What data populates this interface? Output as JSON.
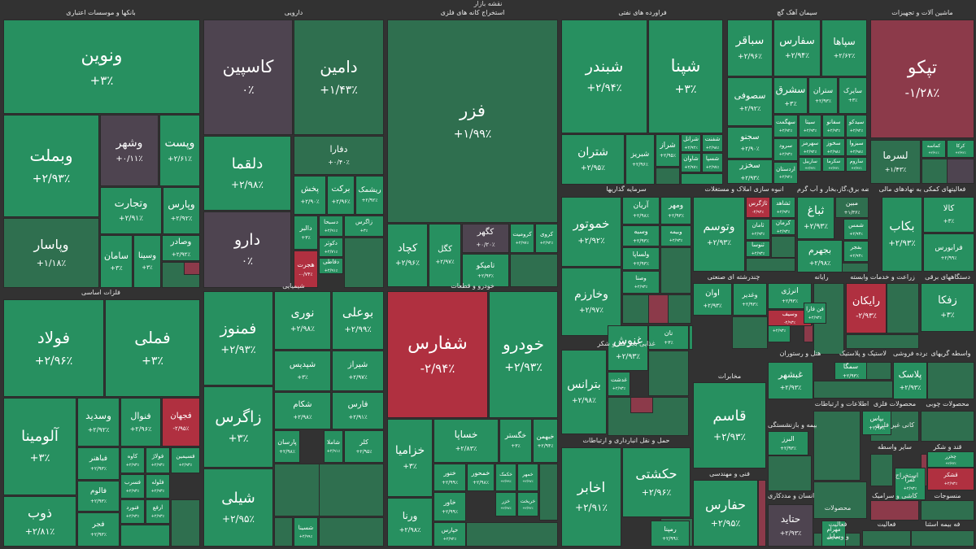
{
  "title": "نقشه بازار",
  "colors": {
    "up": "#279060",
    "upDark": "#2f6f4f",
    "neutral": "#4e4450",
    "down": "#b03040",
    "downMid": "#8c3a4a",
    "bg": "#323232"
  },
  "sectors": [
    "بانکها و موسسات اعتباری",
    "دارویی",
    "استخراج کانه های فلزی",
    "فراورده های نفتی",
    "سیمان آهک گچ",
    "ماشین آلات و تجهیزات",
    "فلزات اساسی",
    "شیمیایی",
    "خودرو و قطعات",
    "سرمایه گذاریها",
    "انبوه سازی املاک و مستغلات",
    "عرضه برق،گاز،بخار و آب گرم",
    "فعالیتهای کمکی به نهادهای مالی",
    "چندرشته ای صنعتی",
    "رایانه",
    "زراعت و خدمات وابسته",
    "دستگاههای برقی",
    "غذایی بجز قند و شکر",
    "هتل و رستوران",
    "لاستیک و پلاستیک",
    "خرده فروشی",
    "واسطه گریهای",
    "مخابرات",
    "اطلاعات و ارتباطات",
    "محصولات فلزی",
    "محصولات چوبی",
    "بیمه و بازنشستگی",
    "کانی غیر فلزی",
    "قند و شکر",
    "حمل و نقل انبارداری و ارتباطات",
    "سایر واسطه",
    "استخراج",
    "فنی و مهندسی",
    "سلامت انسان و مددکاری",
    "کاشی و سرامیک",
    "منسوجات",
    "محصولات",
    "فعالیت",
    "فعالیت",
    "فه بیمه اسثنا",
    "و وسایل"
  ],
  "tiles": [
    {
      "name": "ونوین",
      "value": "+۳٪",
      "c": "up"
    },
    {
      "name": "وبملت",
      "value": "+۲/۹۳٪",
      "c": "up"
    },
    {
      "name": "وپاسار",
      "value": "+۱/۱۸٪",
      "c": "upDark"
    },
    {
      "name": "وشهر",
      "value": "+۰/۱۱٪",
      "c": "neutral"
    },
    {
      "name": "وپست",
      "value": "+۲/۶۱٪",
      "c": "up"
    },
    {
      "name": "وتجارت",
      "value": "+۲/۹۱٪",
      "c": "up"
    },
    {
      "name": "وپارس",
      "value": "+۲/۹۲٪",
      "c": "up"
    },
    {
      "name": "سامان",
      "value": "+۳٪",
      "c": "up"
    },
    {
      "name": "وسینا",
      "value": "+۳٪",
      "c": "up"
    },
    {
      "name": "وصادر",
      "value": "+۲/۹۲٪",
      "c": "up"
    },
    {
      "name": "کاسپین",
      "value": "۰٪",
      "c": "neutral"
    },
    {
      "name": "دامین",
      "value": "+۱/۴۳٪",
      "c": "upDark"
    },
    {
      "name": "دلقما",
      "value": "+۲/۹۸٪",
      "c": "up"
    },
    {
      "name": "دفارا",
      "value": "+۰/۴۰٪",
      "c": "upDark"
    },
    {
      "name": "دارو",
      "value": "۰٪",
      "c": "neutral"
    },
    {
      "name": "پخش",
      "value": "+۲/۹۰٪",
      "c": "up"
    },
    {
      "name": "برکت",
      "value": "+۲/۹۶٪",
      "c": "up"
    },
    {
      "name": "ریشمک",
      "value": "+۲/۹۲٪",
      "c": "up"
    },
    {
      "name": "دالبر",
      "value": "+۳٪",
      "c": "up"
    },
    {
      "name": "دسبحا",
      "value": "+۲/۹۱٪",
      "c": "up"
    },
    {
      "name": "زاگرس",
      "value": "+۳٪",
      "c": "up"
    },
    {
      "name": "دکوثر",
      "value": "+۲/۷۱٪",
      "c": "up"
    },
    {
      "name": "دفاطی",
      "value": "+۲/۹۱٪",
      "c": "up"
    },
    {
      "name": "هجرت",
      "value": "-۰/۷۴٪",
      "c": "down"
    },
    {
      "name": "فزر",
      "value": "+۱/۹۹٪",
      "c": "upDark"
    },
    {
      "name": "کچاد",
      "value": "+۲/۹۶٪",
      "c": "up"
    },
    {
      "name": "کگل",
      "value": "+۲/۹۷٪",
      "c": "up"
    },
    {
      "name": "کگهر",
      "value": "+۰/۲۰٪",
      "c": "neutral"
    },
    {
      "name": "کروميت",
      "value": "+۲/۹۷٪",
      "c": "up"
    },
    {
      "name": "کروی",
      "value": "+۲/۹۲٪",
      "c": "up"
    },
    {
      "name": "کاصفا",
      "value": "+۰/۳۰٪",
      "c": "upDark"
    },
    {
      "name": "کمنا",
      "value": "+۲/۹۲٪",
      "c": "up"
    },
    {
      "name": "تامپکو",
      "value": "+۲/۹۳٪",
      "c": "up"
    },
    {
      "name": "شبندر",
      "value": "+۲/۹۴٪",
      "c": "up"
    },
    {
      "name": "شپنا",
      "value": "+۳٪",
      "c": "up"
    },
    {
      "name": "شتران",
      "value": "+۲/۹۵٪",
      "c": "up"
    },
    {
      "name": "شبریز",
      "value": "+۲/۹۶٪",
      "c": "up"
    },
    {
      "name": "شراز",
      "value": "+۲/۹۵٪",
      "c": "up"
    },
    {
      "name": "شرانل",
      "value": "+۲/۹۲٪",
      "c": "up"
    },
    {
      "name": "شفنت",
      "value": "+۲/۹۸٪",
      "c": "up"
    },
    {
      "name": "شاوان",
      "value": "+۲/۹۷٪",
      "c": "up"
    },
    {
      "name": "شسپا",
      "value": "+۲/۹۷٪",
      "c": "up"
    },
    {
      "name": "سباقر",
      "value": "+۲/۹۶٪",
      "c": "up"
    },
    {
      "name": "سفارس",
      "value": "+۲/۹۴٪",
      "c": "up"
    },
    {
      "name": "سپاها",
      "value": "+۲/۶۲٪",
      "c": "up"
    },
    {
      "name": "سصوفی",
      "value": "+۲/۹۲٪",
      "c": "up"
    },
    {
      "name": "سشرق",
      "value": "+۳٪",
      "c": "up"
    },
    {
      "name": "ستران",
      "value": "+۲/۹۳٪",
      "c": "up"
    },
    {
      "name": "سایرک",
      "value": "+۳٪",
      "c": "up"
    },
    {
      "name": "سهگمت",
      "value": "+۲/۹۲٪",
      "c": "up"
    },
    {
      "name": "سیتا",
      "value": "+۲/۹۳٪",
      "c": "up"
    },
    {
      "name": "سفانو",
      "value": "+۲/۹۳٪",
      "c": "up"
    },
    {
      "name": "سخزر",
      "value": "+۲/۹۳٪",
      "c": "up"
    },
    {
      "name": "سجنو",
      "value": "+۲/۹۰٪",
      "c": "up"
    },
    {
      "name": "سرود",
      "value": "+۲/۹۳٪",
      "c": "up"
    },
    {
      "name": "سیدکو",
      "value": "+۲/۹۲٪",
      "c": "up"
    },
    {
      "name": "سهرمز",
      "value": "+۲/۹۲٪",
      "c": "up"
    },
    {
      "name": "سخوز",
      "value": "+۲/۹۸٪",
      "c": "up"
    },
    {
      "name": "سبزوا",
      "value": "+۲/۹۸٪",
      "c": "up"
    },
    {
      "name": "ساربیل",
      "value": "+۲/۹۳٪",
      "c": "up"
    },
    {
      "name": "سکرما",
      "value": "+۲/۹۳٪",
      "c": "up"
    },
    {
      "name": "ساروم",
      "value": "+۲/۹۲٪",
      "c": "up"
    },
    {
      "name": "اردستان",
      "value": "+۲/۹۲٪",
      "c": "up"
    },
    {
      "name": "تپکو",
      "value": "-۱/۲۸٪",
      "c": "downMid"
    },
    {
      "name": "لسرما",
      "value": "+۱/۴۳٪",
      "c": "upDark"
    },
    {
      "name": "کماسه",
      "value": "+۲/۹۱٪",
      "c": "up"
    },
    {
      "name": "کرکا",
      "value": "+۲/۹۲٪",
      "c": "up"
    },
    {
      "name": "فولاد",
      "value": "+۲/۹۶٪",
      "c": "up"
    },
    {
      "name": "فملی",
      "value": "+۳٪",
      "c": "up"
    },
    {
      "name": "آلومینا",
      "value": "+۳٪",
      "c": "up"
    },
    {
      "name": "وسدید",
      "value": "+۲/۹۲٪",
      "c": "up"
    },
    {
      "name": "فنوال",
      "value": "+۲/۹۶٪",
      "c": "up"
    },
    {
      "name": "فجهان",
      "value": "-۲/۹۵٪",
      "c": "down"
    },
    {
      "name": "ذوب",
      "value": "+۲/۸۱٪",
      "c": "up"
    },
    {
      "name": "فباهنر",
      "value": "+۲/۹۳٪",
      "c": "up"
    },
    {
      "name": "کاوه",
      "value": "+۲/۹۳٪",
      "c": "up"
    },
    {
      "name": "فولاژ",
      "value": "+۲/۹۳٪",
      "c": "up"
    },
    {
      "name": "فسیمین",
      "value": "+۲/۹۳٪",
      "c": "up"
    },
    {
      "name": "فسرب",
      "value": "+۲/۹۳٪",
      "c": "up"
    },
    {
      "name": "فالوم",
      "value": "+۲/۹۳٪",
      "c": "up"
    },
    {
      "name": "فلوله",
      "value": "+۲/۹۳٪",
      "c": "up"
    },
    {
      "name": "فنورد",
      "value": "+۲/۹۳٪",
      "c": "up"
    },
    {
      "name": "ارفع",
      "value": "+۲/۹۳٪",
      "c": "up"
    },
    {
      "name": "فجر",
      "value": "+۲/۹۳٪",
      "c": "up"
    },
    {
      "name": "فمنوز",
      "value": "+۲/۹۳٪",
      "c": "up"
    },
    {
      "name": "نوری",
      "value": "+۲/۹۸٪",
      "c": "up"
    },
    {
      "name": "بوعلی",
      "value": "+۲/۹۹٪",
      "c": "up"
    },
    {
      "name": "زاگرس",
      "value": "+۳٪",
      "c": "up"
    },
    {
      "name": "شپدیس",
      "value": "+۳٪",
      "c": "up"
    },
    {
      "name": "شیراز",
      "value": "+۲/۹۷٪",
      "c": "up"
    },
    {
      "name": "شکام",
      "value": "+۲/۹۸٪",
      "c": "up"
    },
    {
      "name": "فارس",
      "value": "+۲/۹۱٪",
      "c": "up"
    },
    {
      "name": "شیلی",
      "value": "+۲/۹۵٪",
      "c": "up"
    },
    {
      "name": "پارسان",
      "value": "+۲/۹۸٪",
      "c": "up"
    },
    {
      "name": "شاملا",
      "value": "+۲/۹۱٪",
      "c": "up"
    },
    {
      "name": "کلر",
      "value": "+۲/۹۵٪",
      "c": "up"
    },
    {
      "name": "شسینا",
      "value": "+۲/۹۹٪",
      "c": "up"
    },
    {
      "name": "شفارس",
      "value": "-۲/۹۴٪",
      "c": "down"
    },
    {
      "name": "خودرو",
      "value": "+۲/۹۳٪",
      "c": "up"
    },
    {
      "name": "خزامیا",
      "value": "+۳٪",
      "c": "up"
    },
    {
      "name": "خساپا",
      "value": "+۲/۸۳٪",
      "c": "up"
    },
    {
      "name": "خگستر",
      "value": "+۳٪",
      "c": "up"
    },
    {
      "name": "خبهمن",
      "value": "+۲/۹۴٪",
      "c": "up"
    },
    {
      "name": "ورنا",
      "value": "+۲/۹۸٪",
      "c": "up"
    },
    {
      "name": "خنور",
      "value": "+۲/۹۹٪",
      "c": "up"
    },
    {
      "name": "خاور",
      "value": "+۲/۹۹٪",
      "c": "up"
    },
    {
      "name": "خمحور",
      "value": "+۲/۹۸٪",
      "c": "up"
    },
    {
      "name": "خکمک",
      "value": "+۲/۹۹٪",
      "c": "up"
    },
    {
      "name": "خمهر",
      "value": "+۲/۹۷٪",
      "c": "up"
    },
    {
      "name": "خپارس",
      "value": "+۲/۹۲٪",
      "c": "up"
    },
    {
      "name": "خزر",
      "value": "+۲/۹۷٪",
      "c": "up"
    },
    {
      "name": "خریخت",
      "value": "+۲/۹۲٪",
      "c": "up"
    },
    {
      "name": "خموتور",
      "value": "+۲/۹۲٪",
      "c": "up"
    },
    {
      "name": "وخارزم",
      "value": "+۲/۹۷٪",
      "c": "up"
    },
    {
      "name": "آریان",
      "value": "+۲/۹۸٪",
      "c": "up"
    },
    {
      "name": "ومهر",
      "value": "+۲/۹۳٪",
      "c": "up"
    },
    {
      "name": "وسبه",
      "value": "+۲/۹۳٪",
      "c": "up"
    },
    {
      "name": "وبیمه",
      "value": "+۲/۹۳٪",
      "c": "up"
    },
    {
      "name": "ولساپا",
      "value": "+۲/۹۳٪",
      "c": "up"
    },
    {
      "name": "وصنا",
      "value": "+۲/۹۳٪",
      "c": "up"
    },
    {
      "name": "وتوسم",
      "value": "+۲/۹۳٪",
      "c": "up"
    },
    {
      "name": "ثاژگرس",
      "value": "-۲/۹۲٪",
      "c": "down"
    },
    {
      "name": "ثامان",
      "value": "+۲/۹۳٪",
      "c": "up"
    },
    {
      "name": "ثشاهد",
      "value": "+۲/۹۳٪",
      "c": "up"
    },
    {
      "name": "کرمان",
      "value": "+۲/۹۳٪",
      "c": "up"
    },
    {
      "name": "ثنوسا",
      "value": "+۲/۹۳٪",
      "c": "up"
    },
    {
      "name": "ثباغ",
      "value": "+۲/۹۳٪",
      "c": "up"
    },
    {
      "name": "بجهرم",
      "value": "+۲/۹۸٪",
      "c": "up"
    },
    {
      "name": "مبین",
      "value": "+۱/۳۶٪",
      "c": "upDark"
    },
    {
      "name": "شمس",
      "value": "+۲/۹۳٪",
      "c": "up"
    },
    {
      "name": "بفجر",
      "value": "+۲/۹۳٪",
      "c": "up"
    },
    {
      "name": "بکاب",
      "value": "+۲/۹۳٪",
      "c": "up"
    },
    {
      "name": "کالا",
      "value": "+۳٪",
      "c": "up"
    },
    {
      "name": "فرابورس",
      "value": "+۲/۹۹٪",
      "c": "up"
    },
    {
      "name": "انرژی",
      "value": "+۲/۹۳٪",
      "c": "up"
    },
    {
      "name": "اوان",
      "value": "+۲/۹۳٪",
      "c": "up"
    },
    {
      "name": "وغدیر",
      "value": "+۲/۹۳٪",
      "c": "up"
    },
    {
      "name": "وبانک",
      "value": "+۲/۹۳٪",
      "c": "up"
    },
    {
      "name": "وسیف",
      "value": "-۲/۹۳٪",
      "c": "down"
    },
    {
      "name": "فن فارا",
      "value": "+۲/۹۳٪",
      "c": "up"
    },
    {
      "name": "رایکان",
      "value": "-۲/۹۳٪",
      "c": "down"
    },
    {
      "name": "زفکا",
      "value": "+۳٪",
      "c": "up"
    },
    {
      "name": "بترانس",
      "value": "+۲/۹۸٪",
      "c": "up"
    },
    {
      "name": "غنوش",
      "value": "+۲/۹۳٪",
      "c": "up"
    },
    {
      "name": "نان",
      "value": "+۳٪",
      "c": "up"
    },
    {
      "name": "غدشت",
      "value": "+۲/۹۳٪",
      "c": "up"
    },
    {
      "name": "غبشهر",
      "value": "+۲/۹۳٪",
      "c": "up"
    },
    {
      "name": "سمگا",
      "value": "+۲/۹۳٪",
      "c": "up"
    },
    {
      "name": "پلاسک",
      "value": "+۲/۹۳٪",
      "c": "up"
    },
    {
      "name": "قاسم",
      "value": "+۲/۹۳٪",
      "c": "up"
    },
    {
      "name": "اخابر",
      "value": "+۲/۹۱٪",
      "c": "up"
    },
    {
      "name": "حکشتی",
      "value": "+۲/۹۶٪",
      "c": "up"
    },
    {
      "name": "حفارس",
      "value": "+۲/۹۵٪",
      "c": "up"
    },
    {
      "name": "رمپنا",
      "value": "+۲/۹۹٪",
      "c": "up"
    },
    {
      "name": "حتاید",
      "value": "+۲/۹۳٪",
      "c": "neutral"
    },
    {
      "name": "مهرام",
      "value": "+۲/۹۳٪",
      "c": "up"
    },
    {
      "name": "البرز",
      "value": "+۲/۹۳٪",
      "c": "up"
    },
    {
      "name": "بپاس",
      "value": "+۲/۹۳٪",
      "c": "up"
    },
    {
      "name": "کفرا",
      "value": "+۲/۹۳٪",
      "c": "up"
    },
    {
      "name": "قشکر",
      "value": "+۲/۹۳٪",
      "c": "down"
    },
    {
      "name": "چخزر",
      "value": "+۲/۹۳٪",
      "c": "up"
    },
    {
      "name": "حفاری",
      "value": "+۲/۹۳٪",
      "c": "up"
    }
  ]
}
